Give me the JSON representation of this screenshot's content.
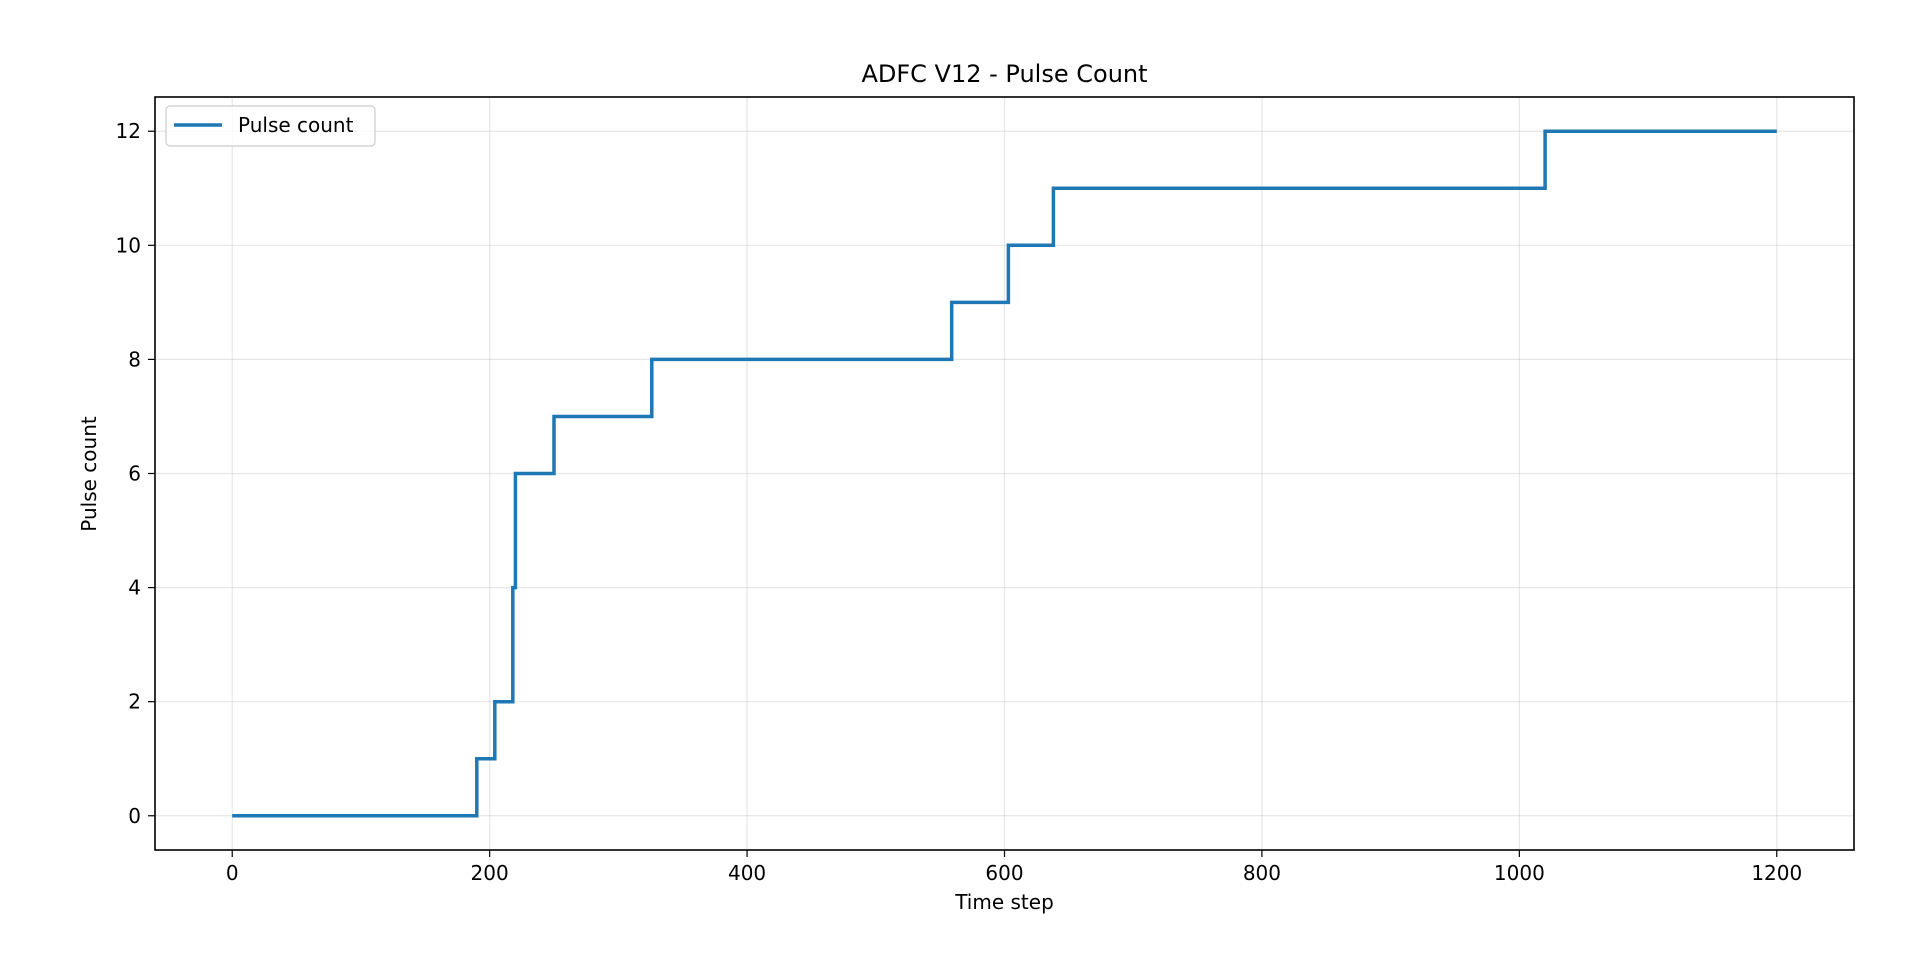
{
  "chart_data": {
    "type": "line",
    "title": "ADFC V12 - Pulse Count",
    "xlabel": "Time step",
    "ylabel": "Pulse count",
    "xlim": [
      -60,
      1260
    ],
    "ylim": [
      -0.6,
      12.6
    ],
    "x_ticks": [
      0,
      200,
      400,
      600,
      800,
      1000,
      1200
    ],
    "y_ticks": [
      0,
      2,
      4,
      6,
      8,
      10,
      12
    ],
    "grid": true,
    "legend_position": "upper-left",
    "series": [
      {
        "name": "Pulse count",
        "color": "#1f77b4",
        "step": "post",
        "x": [
          0,
          190,
          204,
          218,
          220,
          250,
          326,
          559,
          603,
          638,
          1020,
          1200
        ],
        "y": [
          0,
          1,
          2,
          4,
          6,
          7,
          8,
          9,
          10,
          11,
          12,
          12
        ]
      }
    ]
  }
}
